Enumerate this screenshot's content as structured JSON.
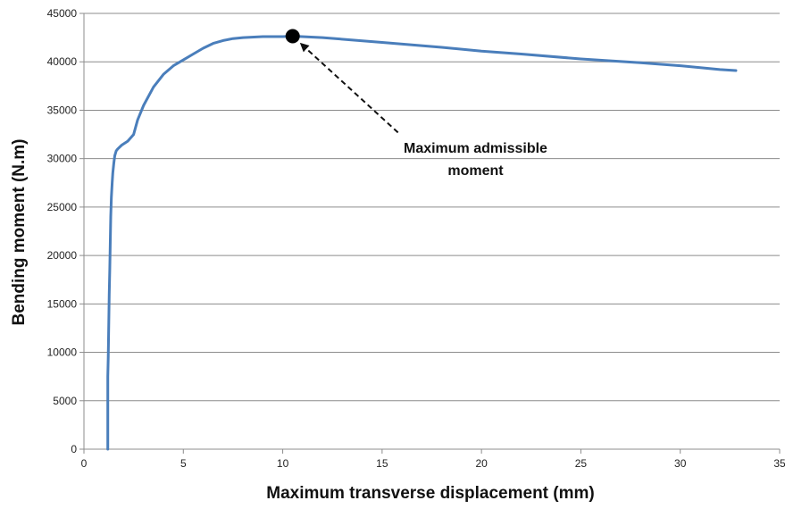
{
  "chart_data": {
    "type": "line",
    "xlabel": "Maximum transverse displacement (mm)",
    "ylabel": "Bending moment (N.m)",
    "xlim": [
      0,
      35
    ],
    "ylim": [
      0,
      45000
    ],
    "x_ticks": [
      0,
      5,
      10,
      15,
      20,
      25,
      30,
      35
    ],
    "y_ticks": [
      0,
      5000,
      10000,
      15000,
      20000,
      25000,
      30000,
      35000,
      40000,
      45000
    ],
    "grid": "horizontal",
    "line_color": "#4a7ebb",
    "series": [
      {
        "x": [
          1.2,
          1.2,
          1.22,
          1.25,
          1.27,
          1.3,
          1.32,
          1.35,
          1.38,
          1.42,
          1.45,
          1.5,
          1.55,
          1.62,
          1.7,
          1.9,
          2.2,
          2.5,
          2.7,
          3.0,
          3.5,
          4.0,
          4.5,
          5.0,
          5.5,
          6.0,
          6.5,
          7.0,
          7.5,
          8.0,
          9.0,
          10.0,
          10.5,
          12.0,
          15.0,
          18.0,
          20.0,
          22.0,
          25.0,
          28.0,
          30.0,
          32.0,
          32.8
        ],
        "y": [
          0,
          7500,
          9500,
          13000,
          16000,
          18500,
          21000,
          24000,
          26000,
          27500,
          28500,
          29500,
          30300,
          30800,
          31000,
          31400,
          31800,
          32500,
          34000,
          35500,
          37400,
          38700,
          39600,
          40200,
          40800,
          41400,
          41900,
          42200,
          42400,
          42500,
          42600,
          42600,
          42650,
          42500,
          42000,
          41500,
          41100,
          40800,
          40300,
          39900,
          39600,
          39200,
          39100
        ]
      }
    ],
    "annotations": [
      {
        "text_line1": "Maximum admissible",
        "text_line2": "moment",
        "point": [
          10.5,
          42650
        ],
        "arrow_tail": [
          15.8,
          32700
        ],
        "label_pos": [
          19.7,
          30600
        ]
      }
    ]
  }
}
